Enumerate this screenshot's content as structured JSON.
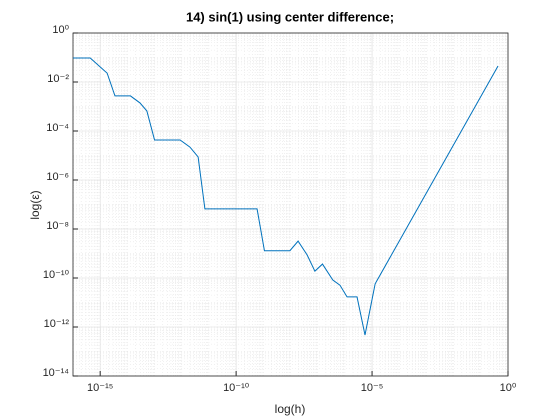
{
  "chart_data": {
    "type": "line",
    "title": "14) sin(1) using center difference;",
    "x_label": "log(h)",
    "y_label": "log(ε)",
    "x": [
      1e-16,
      4.3e-16,
      1.8e-15,
      3.5e-15,
      1.3e-14,
      2.9e-14,
      5.2e-14,
      1e-13,
      8.7e-13,
      2e-12,
      4e-12,
      7.1e-12,
      5.9e-10,
      1.1e-09,
      9.5e-09,
      1.9e-08,
      4.1e-08,
      7.9e-08,
      1.5e-07,
      3.6e-07,
      6.6e-07,
      1.2e-06,
      2.8e-06,
      5.5e-06,
      1.3e-05,
      0.43
    ],
    "series": [
      {
        "color": "#0072bd",
        "values": [
          0.095,
          0.095,
          0.023,
          0.0027,
          0.0027,
          0.0014,
          0.00066,
          4.3e-05,
          4.3e-05,
          2.2e-05,
          8.7e-06,
          6.6e-08,
          6.6e-08,
          1.3e-09,
          1.3e-09,
          3.2e-09,
          8.7e-10,
          1.9e-10,
          3.7e-10,
          8.3e-11,
          5.1e-11,
          1.7e-11,
          1.7e-11,
          4.7e-13,
          5.8e-11,
          0.045
        ]
      }
    ],
    "xscale": "log",
    "yscale": "log",
    "xlim": [
      1e-16,
      1
    ],
    "ylim": [
      1e-14,
      1
    ],
    "xticks": [
      {
        "value": 1e-15,
        "label": "10⁻¹⁵"
      },
      {
        "value": 1e-10,
        "label": "10⁻¹⁰"
      },
      {
        "value": 1e-05,
        "label": "10⁻⁵"
      },
      {
        "value": 1,
        "label": "10⁰"
      }
    ],
    "yticks": [
      {
        "value": 1e-14,
        "label": "10⁻¹⁴"
      },
      {
        "value": 1e-12,
        "label": "10⁻¹²"
      },
      {
        "value": 1e-10,
        "label": "10⁻¹⁰"
      },
      {
        "value": 1e-08,
        "label": "10⁻⁸"
      },
      {
        "value": 1e-06,
        "label": "10⁻⁶"
      },
      {
        "value": 0.0001,
        "label": "10⁻⁴"
      },
      {
        "value": 0.01,
        "label": "10⁻²"
      },
      {
        "value": 1,
        "label": "10⁰"
      }
    ],
    "grid": true,
    "minor_grid": true
  }
}
